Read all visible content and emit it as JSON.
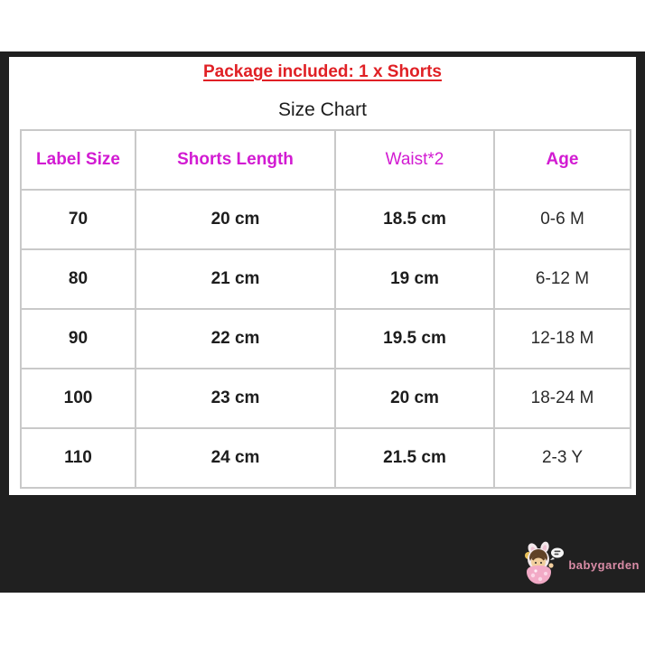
{
  "note": {
    "text": "Package included: 1 x Shorts"
  },
  "size_chart": {
    "title": "Size Chart"
  },
  "chart_data": {
    "type": "table",
    "title": "Size Chart",
    "columns": [
      "Label Size",
      "Shorts Length",
      "Waist*2",
      "Age"
    ],
    "rows": [
      [
        "70",
        "20 cm",
        "18.5 cm",
        "0-6 M"
      ],
      [
        "80",
        "21 cm",
        "19 cm",
        "6-12 M"
      ],
      [
        "90",
        "22 cm",
        "19.5 cm",
        "12-18 M"
      ],
      [
        "100",
        "23 cm",
        "20 cm",
        "18-24 M"
      ],
      [
        "110",
        "24 cm",
        "21.5 cm",
        "2-3 Y"
      ]
    ],
    "header_style_note": "Waist*2 header regular weight; other headers bold; Age column values regular weight"
  },
  "watermark": {
    "brand": "babygarden",
    "icon": "baby-bunny-mascot"
  },
  "colors": {
    "note_red": "#e02025",
    "header_magenta": "#d21bd2",
    "frame_dark": "#202020",
    "table_border": "#c9c9c9",
    "cell_text": "#1d1d1d",
    "brand_pink": "#d98ca6"
  }
}
